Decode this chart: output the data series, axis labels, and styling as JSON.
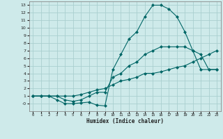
{
  "xlabel": "Humidex (Indice chaleur)",
  "bg_color": "#ceeaea",
  "grid_color": "#aacfcf",
  "line_color": "#006666",
  "xlim": [
    -0.5,
    23.5
  ],
  "ylim": [
    -1.0,
    13.5
  ],
  "xticks": [
    0,
    1,
    2,
    3,
    4,
    5,
    6,
    7,
    8,
    9,
    10,
    11,
    12,
    13,
    14,
    15,
    16,
    17,
    18,
    19,
    20,
    21,
    22,
    23
  ],
  "yticks": [
    0,
    1,
    2,
    3,
    4,
    5,
    6,
    7,
    8,
    9,
    10,
    11,
    12,
    13
  ],
  "ytick_labels": [
    "-0",
    "1",
    "2",
    "3",
    "4",
    "5",
    "6",
    "7",
    "8",
    "9",
    "10",
    "11",
    "12",
    "13"
  ],
  "curve1_x": [
    0,
    1,
    2,
    3,
    4,
    5,
    6,
    7,
    8,
    9,
    10,
    11,
    12,
    13,
    14,
    15,
    16,
    17,
    18,
    19,
    20,
    21,
    22,
    23
  ],
  "curve1_y": [
    1,
    1,
    1,
    1,
    1,
    1,
    1.2,
    1.5,
    1.8,
    2,
    2.5,
    3,
    3.2,
    3.5,
    4,
    4,
    4.2,
    4.5,
    4.8,
    5,
    5.5,
    6,
    6.5,
    7
  ],
  "curve2_x": [
    0,
    1,
    2,
    3,
    4,
    5,
    6,
    7,
    8,
    9,
    10,
    11,
    12,
    13,
    14,
    15,
    16,
    17,
    18,
    19,
    20,
    21,
    22,
    23
  ],
  "curve2_y": [
    1,
    1,
    1,
    0.5,
    0.0,
    0.0,
    0.1,
    0.2,
    -0.2,
    -0.3,
    4.5,
    6.5,
    8.5,
    9.5,
    11.5,
    13.0,
    13.0,
    12.5,
    11.5,
    9.5,
    7.0,
    4.5,
    4.5,
    4.5
  ],
  "curve3_x": [
    0,
    1,
    2,
    3,
    4,
    5,
    6,
    7,
    8,
    9,
    10,
    11,
    12,
    13,
    14,
    15,
    16,
    17,
    18,
    19,
    20,
    21,
    22,
    23
  ],
  "curve3_y": [
    1,
    1,
    1,
    1,
    0.5,
    0.3,
    0.5,
    1.0,
    1.5,
    1.5,
    3.5,
    4.0,
    5.0,
    5.5,
    6.5,
    7.0,
    7.5,
    7.5,
    7.5,
    7.5,
    7.0,
    6.5,
    4.5,
    4.5
  ]
}
